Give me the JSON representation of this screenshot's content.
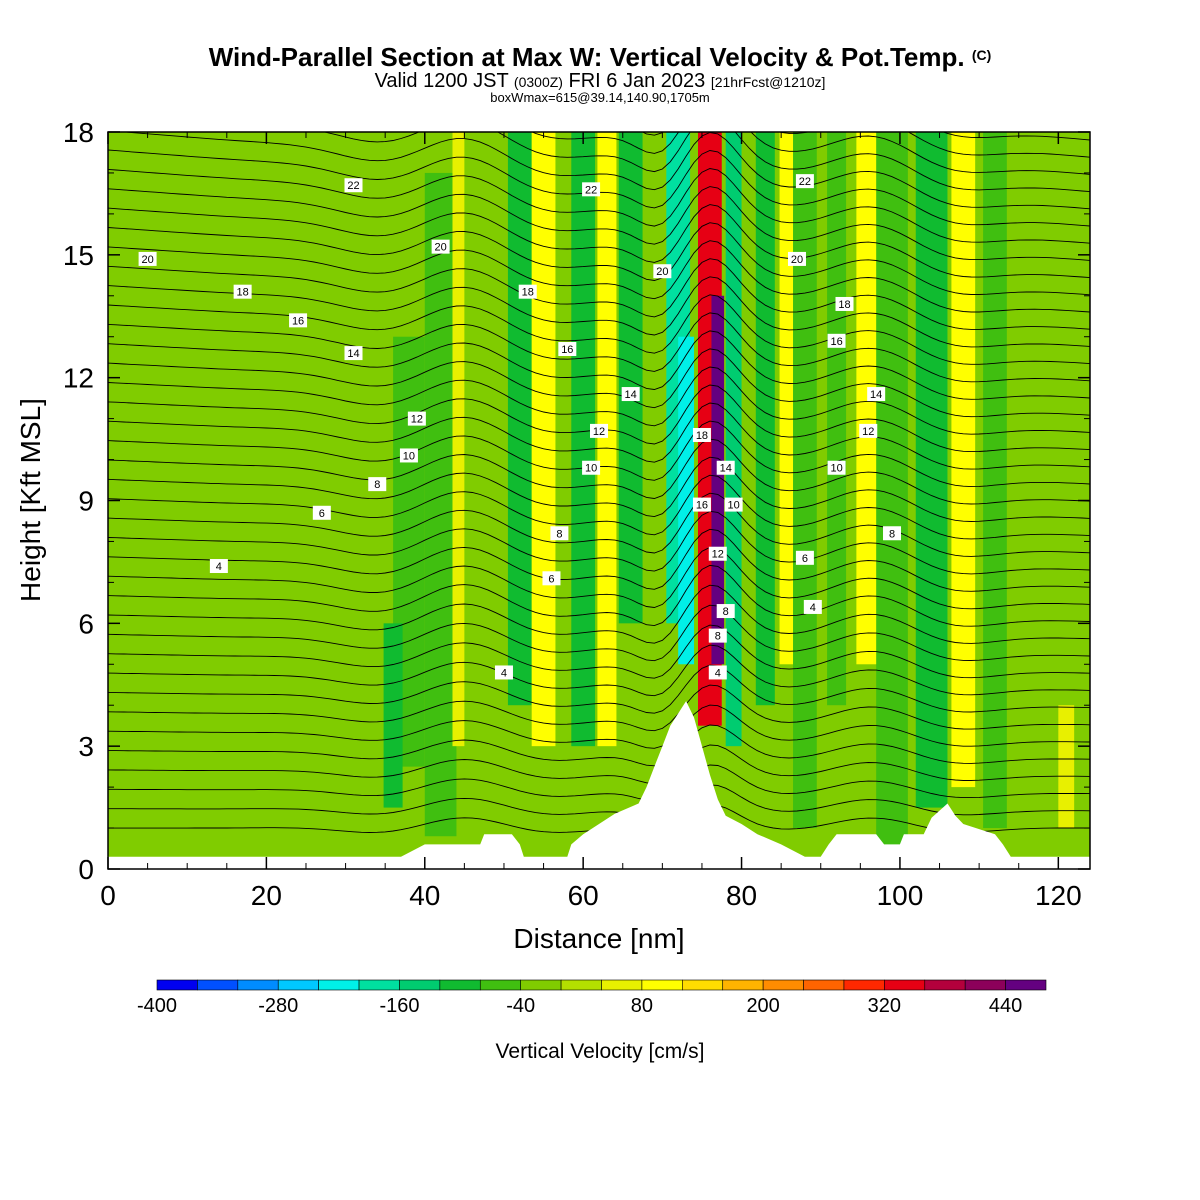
{
  "title": {
    "main": "Wind-Parallel Section at Max W: Vertical Velocity & Pot.Temp.",
    "copyright": "(C)",
    "valid_prefix": "Valid 1200 JST",
    "utc": "(0300Z)",
    "date": "FRI 6 Jan 2023",
    "forecast": "[21hrFcst@1210z]",
    "boxinfo": "boxWmax=615@39.14,140.90,1705m"
  },
  "chart_data": {
    "type": "heatmap",
    "xlabel": "Distance [nm]",
    "ylabel": "Height [Kft MSL]",
    "xlim": [
      0,
      124
    ],
    "ylim": [
      0,
      18
    ],
    "xticks": [
      0,
      20,
      40,
      60,
      80,
      100,
      120
    ],
    "yticks": [
      0,
      3,
      6,
      9,
      12,
      15,
      18
    ],
    "grid": false,
    "colorbar": {
      "label": "Vertical Velocity [cm/s]",
      "tick_labels": [
        -400,
        -280,
        -160,
        -40,
        80,
        200,
        320,
        440
      ],
      "colors": [
        "#0000f0",
        "#0050ff",
        "#008cff",
        "#00c8ff",
        "#00f0e8",
        "#00e0a0",
        "#00cc70",
        "#10bb30",
        "#40bf10",
        "#80cc00",
        "#b4e000",
        "#e8f000",
        "#ffff00",
        "#ffdc00",
        "#ffb400",
        "#ff8c00",
        "#ff6400",
        "#ff2800",
        "#e60014",
        "#b4003c",
        "#8c005a",
        "#640080"
      ]
    },
    "terrain": [
      [
        0,
        0.3
      ],
      [
        37,
        0.3
      ],
      [
        40,
        0.6
      ],
      [
        47,
        0.6
      ],
      [
        47.5,
        0.85
      ],
      [
        51,
        0.85
      ],
      [
        52,
        0.6
      ],
      [
        52.5,
        0.3
      ],
      [
        58,
        0.3
      ],
      [
        58.5,
        0.6
      ],
      [
        60,
        0.85
      ],
      [
        62,
        1.1
      ],
      [
        64,
        1.35
      ],
      [
        67,
        1.6
      ],
      [
        68,
        2.0
      ],
      [
        69,
        2.5
      ],
      [
        70,
        3.0
      ],
      [
        71,
        3.5
      ],
      [
        72,
        3.8
      ],
      [
        73,
        4.1
      ],
      [
        74,
        3.7
      ],
      [
        75,
        3.0
      ],
      [
        76,
        2.3
      ],
      [
        77,
        1.7
      ],
      [
        78,
        1.3
      ],
      [
        80,
        1.1
      ],
      [
        82,
        0.85
      ],
      [
        85,
        0.6
      ],
      [
        88,
        0.3
      ],
      [
        90,
        0.3
      ],
      [
        91,
        0.6
      ],
      [
        92,
        0.85
      ],
      [
        97,
        0.85
      ],
      [
        98,
        0.6
      ],
      [
        100,
        0.6
      ],
      [
        100.5,
        0.85
      ],
      [
        103,
        0.85
      ],
      [
        104,
        1.25
      ],
      [
        106,
        1.6
      ],
      [
        107,
        1.3
      ],
      [
        108,
        1.1
      ],
      [
        112,
        0.85
      ],
      [
        113,
        0.6
      ],
      [
        114,
        0.3
      ],
      [
        124,
        0.3
      ]
    ],
    "bands": [
      {
        "x": 3,
        "half_width": 4,
        "ymin": 0.3,
        "ymax": 18,
        "w": -40
      },
      {
        "x": 30,
        "half_width": 3,
        "ymin": 0.3,
        "ymax": 18,
        "w": -40
      },
      {
        "x": 38,
        "half_width": 2,
        "ymin": 2.5,
        "ymax": 13,
        "w": -60
      },
      {
        "x": 36,
        "half_width": 1.2,
        "ymin": 1.5,
        "ymax": 6,
        "w": -100
      },
      {
        "x": 42,
        "half_width": 2,
        "ymin": 0.8,
        "ymax": 17,
        "w": -60
      },
      {
        "x": 45,
        "half_width": 1.5,
        "ymin": 3,
        "ymax": 18,
        "w": 60
      },
      {
        "x": 47,
        "half_width": 2,
        "ymin": 1,
        "ymax": 18,
        "w": -40
      },
      {
        "x": 52,
        "half_width": 1.5,
        "ymin": 4,
        "ymax": 18,
        "w": -100
      },
      {
        "x": 55,
        "half_width": 1.5,
        "ymin": 3,
        "ymax": 18,
        "w": 80
      },
      {
        "x": 60,
        "half_width": 1.5,
        "ymin": 3,
        "ymax": 18,
        "w": -120
      },
      {
        "x": 63,
        "half_width": 1.2,
        "ymin": 3,
        "ymax": 18,
        "w": 80
      },
      {
        "x": 66,
        "half_width": 1.5,
        "ymin": 6,
        "ymax": 18,
        "w": -100
      },
      {
        "x": 72,
        "half_width": 1.5,
        "ymin": 6,
        "ymax": 18,
        "w": -180
      },
      {
        "x": 73,
        "half_width": 1,
        "ymin": 5,
        "ymax": 13,
        "w": -240
      },
      {
        "x": 76,
        "half_width": 1.5,
        "ymin": 3.5,
        "ymax": 18,
        "w": 320
      },
      {
        "x": 77,
        "half_width": 0.8,
        "ymin": 5,
        "ymax": 14,
        "w": 440
      },
      {
        "x": 79,
        "half_width": 1,
        "ymin": 3,
        "ymax": 18,
        "w": -160
      },
      {
        "x": 83,
        "half_width": 1.2,
        "ymin": 4,
        "ymax": 18,
        "w": -100
      },
      {
        "x": 86,
        "half_width": 1.2,
        "ymin": 5,
        "ymax": 18,
        "w": 80
      },
      {
        "x": 88,
        "half_width": 1.5,
        "ymin": 1,
        "ymax": 18,
        "w": -80
      },
      {
        "x": 92,
        "half_width": 1.2,
        "ymin": 4,
        "ymax": 18,
        "w": -60
      },
      {
        "x": 96,
        "half_width": 1.5,
        "ymin": 5,
        "ymax": 18,
        "w": 80
      },
      {
        "x": 99,
        "half_width": 2,
        "ymin": 0.5,
        "ymax": 18,
        "w": -60
      },
      {
        "x": 104,
        "half_width": 2,
        "ymin": 1.5,
        "ymax": 18,
        "w": -100
      },
      {
        "x": 108,
        "half_width": 1.5,
        "ymin": 2,
        "ymax": 18,
        "w": 80
      },
      {
        "x": 112,
        "half_width": 1.5,
        "ymin": 1,
        "ymax": 18,
        "w": -60
      },
      {
        "x": 119,
        "half_width": 1.5,
        "ymin": 1,
        "ymax": 18,
        "w": -40
      },
      {
        "x": 121,
        "half_width": 1,
        "ymin": 1,
        "ymax": 4,
        "w": 60
      }
    ],
    "contour_labels": [
      {
        "x": 31,
        "y": 16.7,
        "label": "22"
      },
      {
        "x": 61,
        "y": 16.6,
        "label": "22"
      },
      {
        "x": 88,
        "y": 16.8,
        "label": "22"
      },
      {
        "x": 5,
        "y": 14.9,
        "label": "20"
      },
      {
        "x": 42,
        "y": 15.2,
        "label": "20"
      },
      {
        "x": 70,
        "y": 14.6,
        "label": "20"
      },
      {
        "x": 87,
        "y": 14.9,
        "label": "20"
      },
      {
        "x": 17,
        "y": 14.1,
        "label": "18"
      },
      {
        "x": 53,
        "y": 14.1,
        "label": "18"
      },
      {
        "x": 93,
        "y": 13.8,
        "label": "18"
      },
      {
        "x": 24,
        "y": 13.4,
        "label": "16"
      },
      {
        "x": 58,
        "y": 12.7,
        "label": "16"
      },
      {
        "x": 92,
        "y": 12.9,
        "label": "16"
      },
      {
        "x": 31,
        "y": 12.6,
        "label": "14"
      },
      {
        "x": 66,
        "y": 11.6,
        "label": "14"
      },
      {
        "x": 97,
        "y": 11.6,
        "label": "14"
      },
      {
        "x": 39,
        "y": 11.0,
        "label": "12"
      },
      {
        "x": 62,
        "y": 10.7,
        "label": "12"
      },
      {
        "x": 96,
        "y": 10.7,
        "label": "12"
      },
      {
        "x": 38,
        "y": 10.1,
        "label": "10"
      },
      {
        "x": 61,
        "y": 9.8,
        "label": "10"
      },
      {
        "x": 92,
        "y": 9.8,
        "label": "10"
      },
      {
        "x": 34,
        "y": 9.4,
        "label": "8"
      },
      {
        "x": 57,
        "y": 8.2,
        "label": "8"
      },
      {
        "x": 99,
        "y": 8.2,
        "label": "8"
      },
      {
        "x": 27,
        "y": 8.7,
        "label": "6"
      },
      {
        "x": 56,
        "y": 7.1,
        "label": "6"
      },
      {
        "x": 88,
        "y": 7.6,
        "label": "6"
      },
      {
        "x": 14,
        "y": 7.4,
        "label": "4"
      },
      {
        "x": 50,
        "y": 4.8,
        "label": "4"
      },
      {
        "x": 89,
        "y": 6.4,
        "label": "4"
      },
      {
        "x": 75,
        "y": 10.6,
        "label": "18"
      },
      {
        "x": 78,
        "y": 9.8,
        "label": "14"
      },
      {
        "x": 75,
        "y": 8.9,
        "label": "16"
      },
      {
        "x": 79,
        "y": 8.9,
        "label": "10"
      },
      {
        "x": 77,
        "y": 7.7,
        "label": "12"
      },
      {
        "x": 78,
        "y": 6.3,
        "label": "8"
      },
      {
        "x": 77,
        "y": 5.7,
        "label": "8"
      },
      {
        "x": 77,
        "y": 4.8,
        "label": "4"
      }
    ]
  }
}
